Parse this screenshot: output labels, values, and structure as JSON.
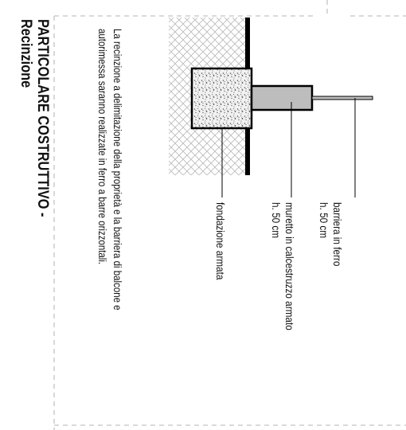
{
  "title": {
    "line1": "PARTICOLARE COSTRUTTIVO -",
    "line2": "Recinzione"
  },
  "description": {
    "line1": "La recinzione a delimitazione della proprietà e la barriera di balcone e",
    "line2": "autorimessa saranno realizzate in ferro a barre orizzontali."
  },
  "labels": {
    "barrier": {
      "line1": "barriera in ferro",
      "line2": "h. 50 cm"
    },
    "wall": {
      "line1": "muretto in calcestruzzo armato",
      "line2": "h. 50 cm"
    },
    "foundation": {
      "line1": "fondazione armata"
    }
  },
  "colors": {
    "border_dash": "#c4c4c4",
    "ground_hatch": "#b9b9b9",
    "wall_fill": "#bdbdbd",
    "outline": "#000000"
  }
}
